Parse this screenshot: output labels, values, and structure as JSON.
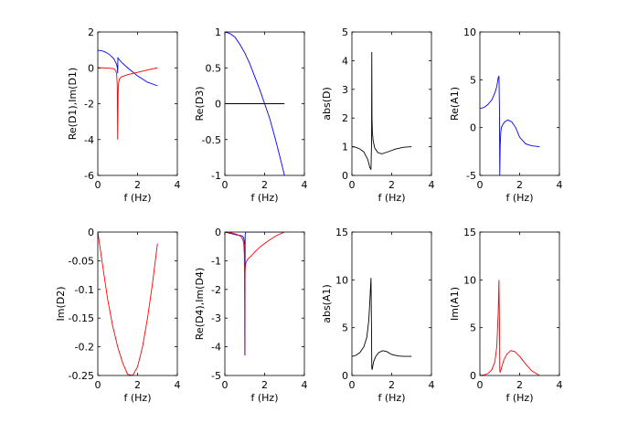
{
  "chart_data": [
    {
      "type": "line",
      "ylabel": "Re(D1),Im(D1)",
      "xlabel": "f (Hz)",
      "xlim": [
        0,
        4
      ],
      "ylim": [
        -6,
        2
      ],
      "xticks": [
        0,
        2,
        4
      ],
      "yticks": [
        -6,
        -4,
        -2,
        0,
        2
      ],
      "grid": false,
      "series": [
        {
          "color": "#0000ff",
          "x": [
            0,
            0.2,
            0.4,
            0.6,
            0.8,
            0.95,
            0.99,
            1.0,
            1.01,
            1.05,
            1.2,
            1.5,
            2.0,
            2.5,
            3.0
          ],
          "y": [
            0.98,
            0.95,
            0.87,
            0.73,
            0.52,
            0.18,
            -0.05,
            -0.3,
            0.55,
            0.5,
            0.3,
            0.0,
            -0.45,
            -0.8,
            -1.0
          ]
        },
        {
          "color": "#ff0000",
          "x": [
            0,
            0.3,
            0.6,
            0.8,
            0.9,
            0.95,
            0.98,
            1.0,
            1.02,
            1.05,
            1.1,
            1.2,
            1.5,
            2.0,
            2.5,
            3.0
          ],
          "y": [
            0,
            0,
            -0.02,
            -0.05,
            -0.15,
            -0.35,
            -1.0,
            -4.0,
            -1.4,
            -0.8,
            -0.6,
            -0.5,
            -0.38,
            -0.25,
            -0.12,
            0.0
          ]
        }
      ]
    },
    {
      "type": "line",
      "ylabel": "Re(D3)",
      "xlabel": "f (Hz)",
      "xlim": [
        0,
        4
      ],
      "ylim": [
        -1,
        1
      ],
      "xticks": [
        0,
        2,
        4
      ],
      "yticks": [
        -1,
        -0.5,
        0,
        0.5,
        1
      ],
      "grid": false,
      "series": [
        {
          "color": "#0000ff",
          "x": [
            0,
            0.25,
            0.5,
            0.75,
            1.0,
            1.25,
            1.5,
            1.75,
            2.0,
            2.25,
            2.5,
            2.75,
            3.0
          ],
          "y": [
            1,
            0.98,
            0.93,
            0.83,
            0.71,
            0.56,
            0.38,
            0.2,
            0.0,
            -0.2,
            -0.45,
            -0.72,
            -1.0
          ]
        },
        {
          "color": "#000000",
          "x": [
            0,
            3
          ],
          "y": [
            0,
            0
          ]
        }
      ]
    },
    {
      "type": "line",
      "ylabel": "abs(D)",
      "xlabel": "f (Hz)",
      "xlim": [
        0,
        4
      ],
      "ylim": [
        0,
        5
      ],
      "xticks": [
        0,
        2,
        4
      ],
      "yticks": [
        0,
        1,
        2,
        3,
        4,
        5
      ],
      "grid": false,
      "series": [
        {
          "color": "#000000",
          "x": [
            0,
            0.2,
            0.4,
            0.6,
            0.8,
            0.9,
            0.96,
            0.99,
            1.0,
            1.01,
            1.03,
            1.07,
            1.15,
            1.3,
            1.5,
            1.8,
            2.2,
            2.6,
            3.0
          ],
          "y": [
            1.0,
            0.98,
            0.92,
            0.82,
            0.55,
            0.28,
            0.2,
            1.2,
            4.3,
            2.0,
            1.5,
            1.2,
            0.95,
            0.8,
            0.75,
            0.82,
            0.92,
            0.98,
            1.0
          ]
        }
      ]
    },
    {
      "type": "line",
      "ylabel": "Re(A1)",
      "xlabel": "f (Hz)",
      "xlim": [
        0,
        4
      ],
      "ylim": [
        -5,
        10
      ],
      "xticks": [
        0,
        2,
        4
      ],
      "yticks": [
        -5,
        0,
        5,
        10
      ],
      "grid": false,
      "series": [
        {
          "color": "#0000ff",
          "x": [
            0,
            0.2,
            0.4,
            0.6,
            0.75,
            0.85,
            0.92,
            0.96,
            0.985,
            1.0,
            1.02,
            1.05,
            1.08,
            1.15,
            1.25,
            1.4,
            1.6,
            1.8,
            2.0,
            2.3,
            2.6,
            3.0
          ],
          "y": [
            2.0,
            2.1,
            2.4,
            2.9,
            3.6,
            4.3,
            5.2,
            5.4,
            2.0,
            -5.0,
            -2.0,
            -0.5,
            0.0,
            0.3,
            0.6,
            0.8,
            0.6,
            0.0,
            -1.0,
            -1.7,
            -1.9,
            -2.0
          ]
        }
      ]
    },
    {
      "type": "line",
      "ylabel": "Im(D2)",
      "xlabel": "f (Hz)",
      "xlim": [
        0,
        4
      ],
      "ylim": [
        -0.25,
        0
      ],
      "xticks": [
        0,
        2,
        4
      ],
      "yticks": [
        -0.25,
        -0.2,
        -0.15,
        -0.1,
        -0.05,
        0
      ],
      "grid": false,
      "series": [
        {
          "color": "#ff0000",
          "x": [
            0,
            0.25,
            0.5,
            0.75,
            1.0,
            1.25,
            1.5,
            1.75,
            2.0,
            2.25,
            2.5,
            2.75,
            3.0
          ],
          "y": [
            0,
            -0.06,
            -0.118,
            -0.164,
            -0.2,
            -0.228,
            -0.248,
            -0.25,
            -0.235,
            -0.2,
            -0.15,
            -0.09,
            -0.02
          ]
        }
      ]
    },
    {
      "type": "line",
      "ylabel": "Re(D4),Im(D4)",
      "xlabel": "f (Hz)",
      "xlim": [
        0,
        4
      ],
      "ylim": [
        -5,
        0
      ],
      "xticks": [
        0,
        2,
        4
      ],
      "yticks": [
        -5,
        -4,
        -3,
        -2,
        -1,
        0
      ],
      "grid": false,
      "series": [
        {
          "color": "#0000ff",
          "x": [
            0,
            0.3,
            0.6,
            0.8,
            0.9,
            0.95,
            0.98,
            1.0,
            1.01,
            1.02,
            1.05,
            1.5,
            2.0,
            2.5,
            3.0
          ],
          "y": [
            0,
            -0.05,
            -0.1,
            -0.12,
            -0.15,
            -0.2,
            -0.35,
            -0.45,
            -4.3,
            -0.1,
            0.0,
            0.0,
            0.0,
            0.0,
            0.0
          ]
        },
        {
          "color": "#ff0000",
          "x": [
            0,
            0.3,
            0.6,
            0.8,
            0.9,
            0.95,
            0.98,
            0.995,
            1.0,
            1.01,
            1.03,
            1.07,
            1.15,
            1.3,
            1.5,
            1.8,
            2.2,
            2.6,
            3.0
          ],
          "y": [
            0,
            -0.02,
            -0.08,
            -0.15,
            -0.25,
            -0.4,
            -0.8,
            -2.5,
            -4.3,
            -1.5,
            -1.2,
            -1.05,
            -0.95,
            -0.85,
            -0.7,
            -0.5,
            -0.3,
            -0.12,
            0.0
          ]
        }
      ]
    },
    {
      "type": "line",
      "ylabel": "abs(A1)",
      "xlabel": "f (Hz)",
      "xlim": [
        0,
        4
      ],
      "ylim": [
        0,
        15
      ],
      "xticks": [
        0,
        2,
        4
      ],
      "yticks": [
        0,
        5,
        10,
        15
      ],
      "grid": false,
      "series": [
        {
          "color": "#000000",
          "x": [
            0,
            0.2,
            0.4,
            0.6,
            0.75,
            0.85,
            0.92,
            0.96,
            0.985,
            1.0,
            1.02,
            1.05,
            1.1,
            1.2,
            1.35,
            1.55,
            1.75,
            2.0,
            2.3,
            2.6,
            3.0
          ],
          "y": [
            2.0,
            2.1,
            2.4,
            3.0,
            4.0,
            5.8,
            8.5,
            10.2,
            5.0,
            0.8,
            0.6,
            1.0,
            1.5,
            2.0,
            2.4,
            2.6,
            2.5,
            2.2,
            2.05,
            2.0,
            2.0
          ]
        }
      ]
    },
    {
      "type": "line",
      "ylabel": "Im(A1)",
      "xlabel": "f (Hz)",
      "xlim": [
        0,
        4
      ],
      "ylim": [
        0,
        15
      ],
      "xticks": [
        0,
        2,
        4
      ],
      "yticks": [
        0,
        5,
        10,
        15
      ],
      "grid": false,
      "series": [
        {
          "color": "#ff0000",
          "x": [
            0,
            0.2,
            0.4,
            0.6,
            0.75,
            0.85,
            0.92,
            0.96,
            0.985,
            1.0,
            1.02,
            1.05,
            1.1,
            1.2,
            1.35,
            1.55,
            1.75,
            2.0,
            2.3,
            2.6,
            3.0
          ],
          "y": [
            0,
            0.05,
            0.2,
            0.6,
            1.4,
            3.0,
            6.5,
            10.0,
            5.5,
            0.6,
            0.3,
            0.5,
            0.9,
            1.6,
            2.2,
            2.6,
            2.5,
            2.0,
            1.2,
            0.5,
            0.0
          ]
        }
      ]
    }
  ]
}
